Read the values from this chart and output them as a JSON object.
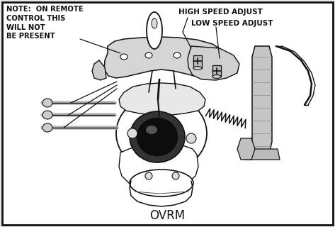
{
  "bg_color": "#e8e8e8",
  "border_color": "#111111",
  "text_color": "#111111",
  "title": "OVRM",
  "note_text": "NOTE:  ON REMOTE\nCONTROL THIS\nWILL NOT\nBE PRESENT",
  "label_high": "HIGH SPEED ADJUST",
  "label_low": "LOW SPEED ADJUST",
  "fig_width": 4.73,
  "fig_height": 3.2,
  "dpi": 100,
  "line_color": "#111111",
  "fill_light": "#e0e0e0",
  "fill_mid": "#c8c8c8",
  "fill_dark": "#aaaaaa",
  "white": "#ffffff"
}
